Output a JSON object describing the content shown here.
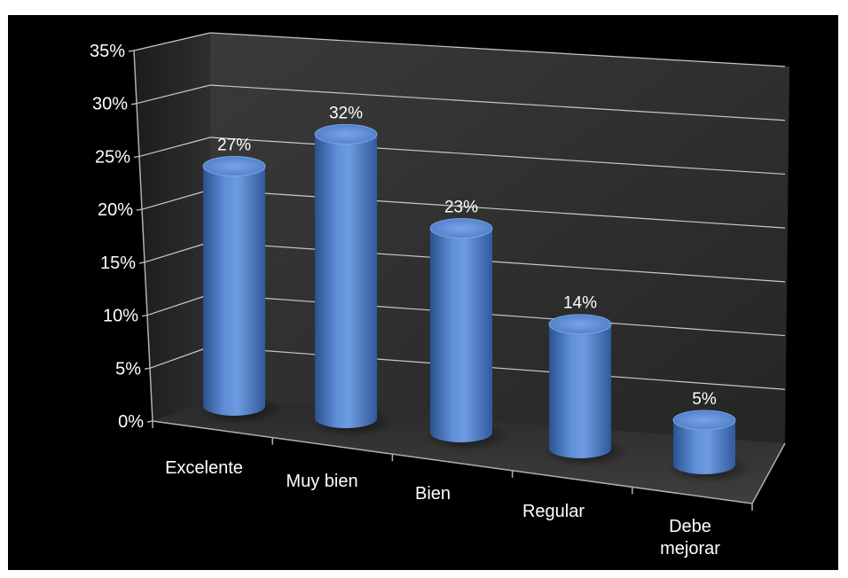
{
  "chart_data": {
    "type": "bar",
    "style": "3d-cylinder",
    "categories": [
      "Excelente",
      "Muy bien",
      "Bien",
      "Regular",
      "Debe mejorar"
    ],
    "category_lines": [
      [
        "Excelente"
      ],
      [
        "Muy bien"
      ],
      [
        "Bien"
      ],
      [
        "Regular"
      ],
      [
        "Debe",
        "mejorar"
      ]
    ],
    "values": [
      27,
      32,
      23,
      14,
      5
    ],
    "data_labels": [
      "27%",
      "32%",
      "23%",
      "14%",
      "5%"
    ],
    "title": "",
    "xlabel": "",
    "ylabel": "",
    "ylim": [
      0,
      35
    ],
    "yticks": [
      "0%",
      "5%",
      "10%",
      "15%",
      "20%",
      "25%",
      "30%",
      "35%"
    ],
    "grid": true,
    "legend": "none"
  },
  "colors": {
    "background": "#000000",
    "bar_light": "#6f9be0",
    "bar_mid": "#4a7cc9",
    "bar_dark": "#2b528f",
    "grid": "#c8c8c8",
    "text": "#ffffff"
  }
}
